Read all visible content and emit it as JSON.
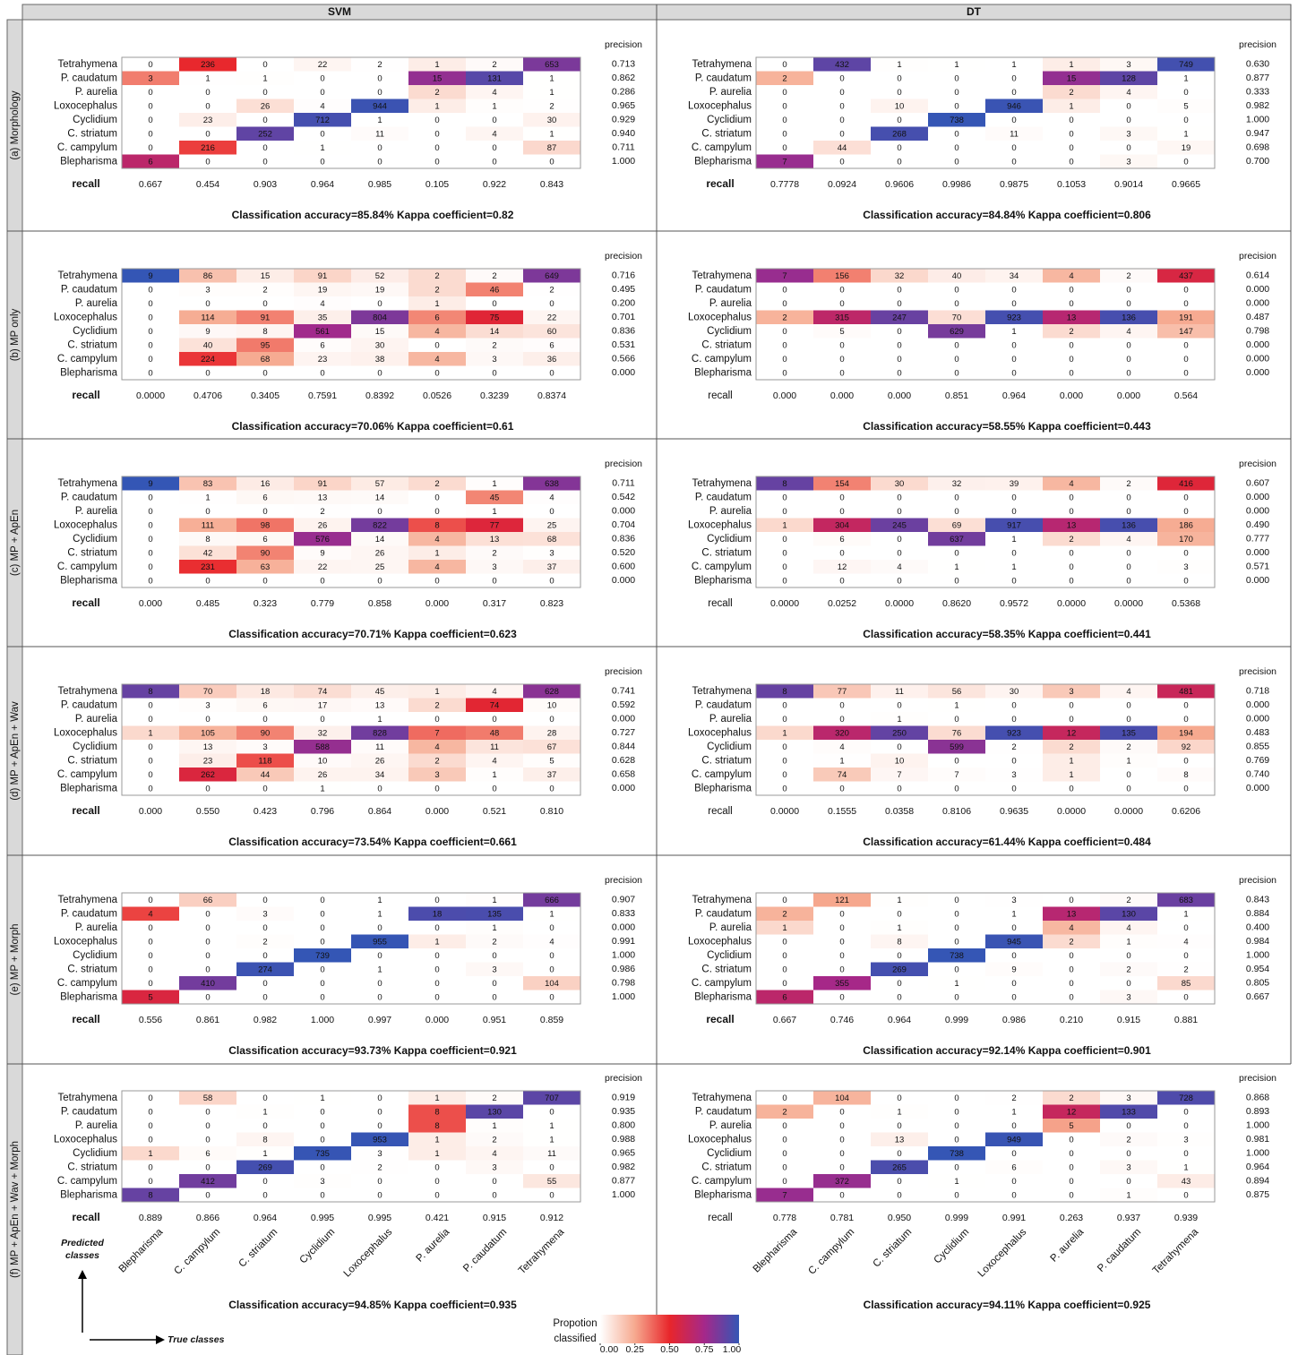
{
  "columns": [
    "SVM",
    "DT"
  ],
  "rows": [
    "(a) Morphology",
    "(b) MP only",
    "(c) MP + ApEn",
    "(d) MP + ApEn + Wav",
    "(e) MP + Morph",
    "(f) MP + ApEn + Wav + Morph"
  ],
  "predicted_classes": [
    "Tetrahymena",
    "P. caudatum",
    "P. aurelia",
    "Loxocephalus",
    "Cyclidium",
    "C. striatum",
    "C. campylum",
    "Blepharisma"
  ],
  "true_classes": [
    "Blepharisma",
    "C. campylum",
    "C. striatum",
    "Cyclidium",
    "Loxocephalus",
    "P. aurelia",
    "P. caudatum",
    "Tetrahymena"
  ],
  "precision_label": "precision",
  "recall_label": "recall",
  "axis_labels": {
    "predicted": [
      "Predicted",
      "classes"
    ],
    "true": "True classes"
  },
  "legend": {
    "title": [
      "Propotion",
      "classified"
    ],
    "ticks": [
      {
        "value": 0,
        "label": "0.00"
      },
      {
        "value": 0.25,
        "label": "0.25"
      },
      {
        "value": 0.5,
        "label": "0.50"
      },
      {
        "value": 0.75,
        "label": "0.75"
      },
      {
        "value": 1,
        "label": "1.00"
      }
    ],
    "colors": [
      "#ffffff",
      "#f6a98f",
      "#e8262b",
      "#a5288a",
      "#3456b5"
    ]
  },
  "chart_data": [
    {
      "type": "heatmap",
      "values": [
        [
          0,
          236,
          0,
          22,
          2,
          1,
          2,
          653
        ],
        [
          3,
          1,
          1,
          0,
          0,
          15,
          131,
          1
        ],
        [
          0,
          0,
          0,
          0,
          0,
          2,
          4,
          1
        ],
        [
          0,
          0,
          26,
          4,
          944,
          1,
          1,
          2
        ],
        [
          0,
          23,
          0,
          712,
          1,
          0,
          0,
          30
        ],
        [
          0,
          0,
          252,
          0,
          11,
          0,
          4,
          1
        ],
        [
          0,
          216,
          0,
          1,
          0,
          0,
          0,
          87
        ],
        [
          6,
          0,
          0,
          0,
          0,
          0,
          0,
          0
        ]
      ],
      "precision": [
        "0.713",
        "0.862",
        "0.286",
        "0.965",
        "0.929",
        "0.940",
        "0.711",
        "1.000"
      ],
      "recall": [
        "0.667",
        "0.454",
        "0.903",
        "0.964",
        "0.985",
        "0.105",
        "0.922",
        "0.843"
      ],
      "caption": "Classification accuracy=85.84% Kappa coefficient=0.82"
    },
    {
      "type": "heatmap",
      "values": [
        [
          0,
          432,
          1,
          1,
          1,
          1,
          3,
          749
        ],
        [
          2,
          0,
          0,
          0,
          0,
          15,
          128,
          1
        ],
        [
          0,
          0,
          0,
          0,
          0,
          2,
          4,
          0
        ],
        [
          0,
          0,
          10,
          0,
          946,
          1,
          0,
          5
        ],
        [
          0,
          0,
          0,
          738,
          0,
          0,
          0,
          0
        ],
        [
          0,
          0,
          268,
          0,
          11,
          0,
          3,
          1
        ],
        [
          0,
          44,
          0,
          0,
          0,
          0,
          0,
          19
        ],
        [
          7,
          0,
          0,
          0,
          0,
          0,
          3,
          0
        ]
      ],
      "precision": [
        "0.630",
        "0.877",
        "0.333",
        "0.982",
        "1.000",
        "0.947",
        "0.698",
        "0.700"
      ],
      "recall": [
        "0.7778",
        "0.0924",
        "0.9606",
        "0.9986",
        "0.9875",
        "0.1053",
        "0.9014",
        "0.9665"
      ],
      "caption": "Classification accuracy=84.84% Kappa coefficient=0.806"
    },
    {
      "type": "heatmap",
      "values": [
        [
          9,
          86,
          15,
          91,
          52,
          2,
          2,
          649
        ],
        [
          0,
          3,
          2,
          19,
          19,
          2,
          46,
          2
        ],
        [
          0,
          0,
          0,
          4,
          0,
          1,
          0,
          0
        ],
        [
          0,
          114,
          91,
          35,
          804,
          6,
          75,
          22
        ],
        [
          0,
          9,
          8,
          561,
          15,
          4,
          14,
          60
        ],
        [
          0,
          40,
          95,
          6,
          30,
          0,
          2,
          6
        ],
        [
          0,
          224,
          68,
          23,
          38,
          4,
          3,
          36
        ],
        [
          0,
          0,
          0,
          0,
          0,
          0,
          0,
          0
        ]
      ],
      "precision": [
        "0.716",
        "0.495",
        "0.200",
        "0.701",
        "0.836",
        "0.531",
        "0.566",
        "0.000"
      ],
      "recall": [
        "0.0000",
        "0.4706",
        "0.3405",
        "0.7591",
        "0.8392",
        "0.0526",
        "0.3239",
        "0.8374"
      ],
      "caption": "Classification accuracy=70.06% Kappa coefficient=0.61"
    },
    {
      "type": "heatmap",
      "values": [
        [
          7,
          156,
          32,
          40,
          34,
          4,
          2,
          437
        ],
        [
          0,
          0,
          0,
          0,
          0,
          0,
          0,
          0
        ],
        [
          0,
          0,
          0,
          0,
          0,
          0,
          0,
          0
        ],
        [
          2,
          315,
          247,
          70,
          923,
          13,
          136,
          191
        ],
        [
          0,
          5,
          0,
          629,
          1,
          2,
          4,
          147
        ],
        [
          0,
          0,
          0,
          0,
          0,
          0,
          0,
          0
        ],
        [
          0,
          0,
          0,
          0,
          0,
          0,
          0,
          0
        ],
        [
          0,
          0,
          0,
          0,
          0,
          0,
          0,
          0
        ]
      ],
      "precision": [
        "0.614",
        "0.000",
        "0.000",
        "0.487",
        "0.798",
        "0.000",
        "0.000",
        "0.000"
      ],
      "recall": [
        "0.000",
        "0.000",
        "0.000",
        "0.851",
        "0.964",
        "0.000",
        "0.000",
        "0.564"
      ],
      "caption": "Classification accuracy=58.55% Kappa coefficient=0.443"
    },
    {
      "type": "heatmap",
      "values": [
        [
          9,
          83,
          16,
          91,
          57,
          2,
          1,
          638
        ],
        [
          0,
          1,
          6,
          13,
          14,
          0,
          45,
          4
        ],
        [
          0,
          0,
          0,
          2,
          0,
          0,
          1,
          0
        ],
        [
          0,
          111,
          98,
          26,
          822,
          8,
          77,
          25
        ],
        [
          0,
          8,
          6,
          576,
          14,
          4,
          13,
          68
        ],
        [
          0,
          42,
          90,
          9,
          26,
          1,
          2,
          3
        ],
        [
          0,
          231,
          63,
          22,
          25,
          4,
          3,
          37
        ],
        [
          0,
          0,
          0,
          0,
          0,
          0,
          0,
          0
        ]
      ],
      "precision": [
        "0.711",
        "0.542",
        "0.000",
        "0.704",
        "0.836",
        "0.520",
        "0.600",
        "0.000"
      ],
      "recall": [
        "0.000",
        "0.485",
        "0.323",
        "0.779",
        "0.858",
        "0.000",
        "0.317",
        "0.823"
      ],
      "caption": "Classification accuracy=70.71% Kappa coefficient=0.623"
    },
    {
      "type": "heatmap",
      "values": [
        [
          8,
          154,
          30,
          32,
          39,
          4,
          2,
          416
        ],
        [
          0,
          0,
          0,
          0,
          0,
          0,
          0,
          0
        ],
        [
          0,
          0,
          0,
          0,
          0,
          0,
          0,
          0
        ],
        [
          1,
          304,
          245,
          69,
          917,
          13,
          136,
          186
        ],
        [
          0,
          6,
          0,
          637,
          1,
          2,
          4,
          170
        ],
        [
          0,
          0,
          0,
          0,
          0,
          0,
          0,
          0
        ],
        [
          0,
          12,
          4,
          1,
          1,
          0,
          0,
          3
        ],
        [
          0,
          0,
          0,
          0,
          0,
          0,
          0,
          0
        ]
      ],
      "precision": [
        "0.607",
        "0.000",
        "0.000",
        "0.490",
        "0.777",
        "0.000",
        "0.571",
        "0.000"
      ],
      "recall": [
        "0.0000",
        "0.0252",
        "0.0000",
        "0.8620",
        "0.9572",
        "0.0000",
        "0.0000",
        "0.5368"
      ],
      "caption": "Classification accuracy=58.35% Kappa coefficient=0.441"
    },
    {
      "type": "heatmap",
      "values": [
        [
          8,
          70,
          18,
          74,
          45,
          1,
          4,
          628
        ],
        [
          0,
          3,
          6,
          17,
          13,
          2,
          74,
          10
        ],
        [
          0,
          0,
          0,
          0,
          1,
          0,
          0,
          0
        ],
        [
          1,
          105,
          90,
          32,
          828,
          7,
          48,
          28
        ],
        [
          0,
          13,
          3,
          588,
          11,
          4,
          11,
          67
        ],
        [
          0,
          23,
          118,
          10,
          26,
          2,
          4,
          5
        ],
        [
          0,
          262,
          44,
          26,
          34,
          3,
          1,
          37
        ],
        [
          0,
          0,
          0,
          1,
          0,
          0,
          0,
          0
        ]
      ],
      "precision": [
        "0.741",
        "0.592",
        "0.000",
        "0.727",
        "0.844",
        "0.628",
        "0.658",
        "0.000"
      ],
      "recall": [
        "0.000",
        "0.550",
        "0.423",
        "0.796",
        "0.864",
        "0.000",
        "0.521",
        "0.810"
      ],
      "caption": "Classification accuracy=73.54% Kappa coefficient=0.661"
    },
    {
      "type": "heatmap",
      "values": [
        [
          8,
          77,
          11,
          56,
          30,
          3,
          4,
          481
        ],
        [
          0,
          0,
          0,
          1,
          0,
          0,
          0,
          0
        ],
        [
          0,
          0,
          1,
          0,
          0,
          0,
          0,
          0
        ],
        [
          1,
          320,
          250,
          76,
          923,
          12,
          135,
          194
        ],
        [
          0,
          4,
          0,
          599,
          2,
          2,
          2,
          92
        ],
        [
          0,
          1,
          10,
          0,
          0,
          1,
          1,
          0
        ],
        [
          0,
          74,
          7,
          7,
          3,
          1,
          0,
          8
        ],
        [
          0,
          0,
          0,
          0,
          0,
          0,
          0,
          0
        ]
      ],
      "precision": [
        "0.718",
        "0.000",
        "0.000",
        "0.483",
        "0.855",
        "0.769",
        "0.740",
        "0.000"
      ],
      "recall": [
        "0.0000",
        "0.1555",
        "0.0358",
        "0.8106",
        "0.9635",
        "0.0000",
        "0.0000",
        "0.6206"
      ],
      "caption": "Classification accuracy=61.44% Kappa coefficient=0.484"
    },
    {
      "type": "heatmap",
      "values": [
        [
          0,
          66,
          0,
          0,
          1,
          0,
          1,
          666
        ],
        [
          4,
          0,
          3,
          0,
          1,
          18,
          135,
          1
        ],
        [
          0,
          0,
          0,
          0,
          0,
          0,
          1,
          0
        ],
        [
          0,
          0,
          2,
          0,
          955,
          1,
          2,
          4
        ],
        [
          0,
          0,
          0,
          739,
          0,
          0,
          0,
          0
        ],
        [
          0,
          0,
          274,
          0,
          1,
          0,
          3,
          0
        ],
        [
          0,
          410,
          0,
          0,
          0,
          0,
          0,
          104
        ],
        [
          5,
          0,
          0,
          0,
          0,
          0,
          0,
          0
        ]
      ],
      "precision": [
        "0.907",
        "0.833",
        "0.000",
        "0.991",
        "1.000",
        "0.986",
        "0.798",
        "1.000"
      ],
      "recall": [
        "0.556",
        "0.861",
        "0.982",
        "1.000",
        "0.997",
        "0.000",
        "0.951",
        "0.859"
      ],
      "caption": "Classification accuracy=93.73% Kappa coefficient=0.921"
    },
    {
      "type": "heatmap",
      "values": [
        [
          0,
          121,
          1,
          0,
          3,
          0,
          2,
          683
        ],
        [
          2,
          0,
          0,
          0,
          1,
          13,
          130,
          1
        ],
        [
          1,
          0,
          1,
          0,
          0,
          4,
          4,
          0
        ],
        [
          0,
          0,
          8,
          0,
          945,
          2,
          1,
          4
        ],
        [
          0,
          0,
          0,
          738,
          0,
          0,
          0,
          0
        ],
        [
          0,
          0,
          269,
          0,
          9,
          0,
          2,
          2
        ],
        [
          0,
          355,
          0,
          1,
          0,
          0,
          0,
          85
        ],
        [
          6,
          0,
          0,
          0,
          0,
          0,
          3,
          0
        ]
      ],
      "precision": [
        "0.843",
        "0.884",
        "0.400",
        "0.984",
        "1.000",
        "0.954",
        "0.805",
        "0.667"
      ],
      "recall": [
        "0.667",
        "0.746",
        "0.964",
        "0.999",
        "0.986",
        "0.210",
        "0.915",
        "0.881"
      ],
      "caption": "Classification accuracy=92.14% Kappa coefficient=0.901"
    },
    {
      "type": "heatmap",
      "values": [
        [
          0,
          58,
          0,
          1,
          0,
          1,
          2,
          707
        ],
        [
          0,
          0,
          1,
          0,
          0,
          8,
          130,
          0
        ],
        [
          0,
          0,
          0,
          0,
          0,
          8,
          1,
          1
        ],
        [
          0,
          0,
          8,
          0,
          953,
          1,
          2,
          1
        ],
        [
          1,
          6,
          1,
          735,
          3,
          1,
          4,
          11
        ],
        [
          0,
          0,
          269,
          0,
          2,
          0,
          3,
          0
        ],
        [
          0,
          412,
          0,
          3,
          0,
          0,
          0,
          55
        ],
        [
          8,
          0,
          0,
          0,
          0,
          0,
          0,
          0
        ]
      ],
      "precision": [
        "0.919",
        "0.935",
        "0.800",
        "0.988",
        "0.965",
        "0.982",
        "0.877",
        "1.000"
      ],
      "recall": [
        "0.889",
        "0.866",
        "0.964",
        "0.995",
        "0.995",
        "0.421",
        "0.915",
        "0.912"
      ],
      "caption": "Classification accuracy=94.85% Kappa coefficient=0.935"
    },
    {
      "type": "heatmap",
      "values": [
        [
          0,
          104,
          0,
          0,
          2,
          2,
          3,
          728
        ],
        [
          2,
          0,
          1,
          0,
          1,
          12,
          133,
          0
        ],
        [
          0,
          0,
          0,
          0,
          0,
          5,
          0,
          0
        ],
        [
          0,
          0,
          13,
          0,
          949,
          0,
          2,
          3
        ],
        [
          0,
          0,
          0,
          738,
          0,
          0,
          0,
          0
        ],
        [
          0,
          0,
          265,
          0,
          6,
          0,
          3,
          1
        ],
        [
          0,
          372,
          0,
          1,
          0,
          0,
          0,
          43
        ],
        [
          7,
          0,
          0,
          0,
          0,
          0,
          1,
          0
        ]
      ],
      "precision": [
        "0.868",
        "0.893",
        "1.000",
        "0.981",
        "1.000",
        "0.964",
        "0.894",
        "0.875"
      ],
      "recall": [
        "0.778",
        "0.781",
        "0.950",
        "0.999",
        "0.991",
        "0.263",
        "0.937",
        "0.939"
      ],
      "caption": "Classification accuracy=94.11% Kappa coefficient=0.925"
    }
  ]
}
